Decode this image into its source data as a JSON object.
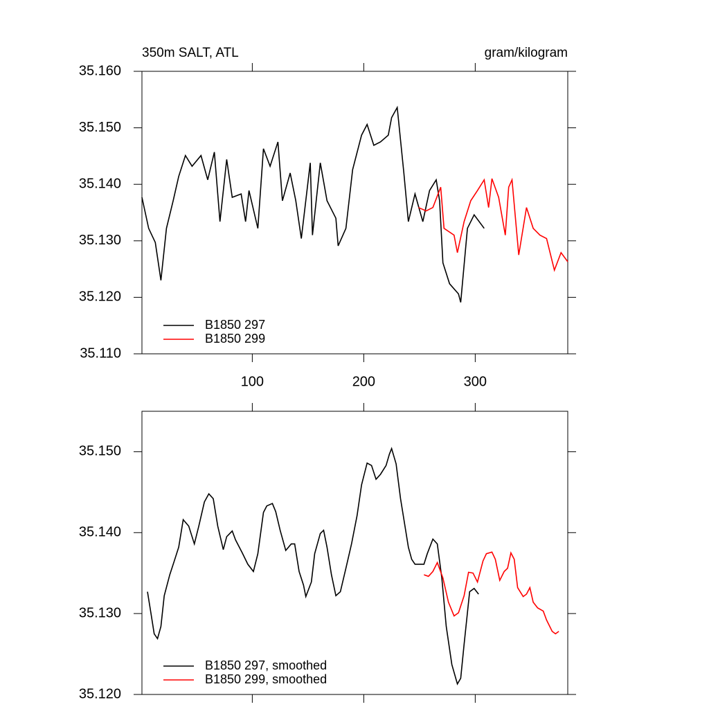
{
  "chart_data": [
    {
      "type": "line",
      "title": "350m SALT, ATL",
      "units": "gram/kilogram",
      "xlim": [
        1,
        383
      ],
      "xticks": [
        100,
        200,
        300
      ],
      "ylim": [
        35.11,
        35.16
      ],
      "yticks": [
        {
          "value": 35.11,
          "label": "35.110"
        },
        {
          "value": 35.12,
          "label": "35.120"
        },
        {
          "value": 35.13,
          "label": "35.130"
        },
        {
          "value": 35.14,
          "label": "35.140"
        },
        {
          "value": 35.15,
          "label": "35.150"
        },
        {
          "value": 35.16,
          "label": "35.160"
        }
      ],
      "legend": "bottom-left",
      "series": [
        {
          "name": "B1850 297",
          "color": "#000000",
          "x": [
            1,
            7,
            13,
            18,
            23,
            29,
            34,
            40,
            46,
            54,
            60,
            66,
            71,
            77,
            82,
            90,
            94,
            97,
            105,
            110,
            116,
            123,
            127,
            134,
            139,
            144,
            152,
            154,
            161,
            167,
            175,
            177,
            184,
            190,
            198,
            203,
            209,
            215,
            222,
            225,
            230,
            236,
            240,
            246,
            253,
            259,
            265,
            268,
            271,
            277,
            285,
            287,
            293,
            299,
            308
          ],
          "values": [
            35.1377,
            35.1322,
            35.1297,
            35.123,
            35.1322,
            35.1371,
            35.1414,
            35.1451,
            35.1432,
            35.1451,
            35.1408,
            35.1457,
            35.1334,
            35.1444,
            35.1377,
            35.1383,
            35.1334,
            35.1389,
            35.1322,
            35.1463,
            35.1432,
            35.1475,
            35.1371,
            35.142,
            35.1371,
            35.1304,
            35.1438,
            35.131,
            35.1438,
            35.1371,
            35.134,
            35.1291,
            35.1322,
            35.1426,
            35.1487,
            35.1506,
            35.1469,
            35.1475,
            35.1487,
            35.1518,
            35.1536,
            35.142,
            35.1334,
            35.1383,
            35.1334,
            35.1389,
            35.1408,
            35.1371,
            35.1261,
            35.1224,
            35.1206,
            35.1191,
            35.1322,
            35.1346,
            35.1322
          ]
        },
        {
          "name": "B1850 299",
          "color": "#ff0000",
          "x": [
            249,
            256,
            262,
            269,
            272,
            281,
            284,
            290,
            296,
            302,
            308,
            312,
            315,
            321,
            327,
            330,
            333,
            339,
            346,
            352,
            358,
            364,
            371,
            377,
            383
          ],
          "values": [
            35.1359,
            35.1353,
            35.1359,
            35.1395,
            35.1322,
            35.131,
            35.1279,
            35.1334,
            35.1371,
            35.1389,
            35.1408,
            35.1359,
            35.141,
            35.1377,
            35.131,
            35.1395,
            35.1408,
            35.1275,
            35.1359,
            35.1322,
            35.131,
            35.1304,
            35.1248,
            35.1279,
            35.1263
          ]
        }
      ]
    },
    {
      "type": "line",
      "xlim": [
        1,
        383
      ],
      "ylim": [
        35.12,
        35.155
      ],
      "yticks": [
        {
          "value": 35.12,
          "label": "35.120"
        },
        {
          "value": 35.13,
          "label": "35.130"
        },
        {
          "value": 35.14,
          "label": "35.140"
        },
        {
          "value": 35.15,
          "label": "35.150"
        }
      ],
      "legend": "bottom-left",
      "series": [
        {
          "name": "B1850 297, smoothed",
          "color": "#000000",
          "x": [
            6,
            9,
            12,
            15,
            18,
            21,
            26,
            30,
            34,
            38,
            43,
            48,
            52,
            57,
            61,
            65,
            69,
            74,
            77,
            82,
            85,
            91,
            96,
            101,
            105,
            110,
            113,
            118,
            121,
            125,
            130,
            135,
            138,
            142,
            146,
            148,
            153,
            156,
            161,
            164,
            167,
            171,
            175,
            179,
            184,
            189,
            194,
            198,
            203,
            207,
            211,
            215,
            220,
            223,
            225,
            229,
            233,
            237,
            240,
            243,
            246,
            249,
            254,
            257,
            262,
            266,
            270,
            274,
            279,
            284,
            287,
            290,
            295,
            299,
            303
          ],
          "values": [
            35.1327,
            35.1301,
            35.1275,
            35.1269,
            35.1284,
            35.1322,
            35.1348,
            35.1365,
            35.1382,
            35.1416,
            35.1408,
            35.1386,
            35.1408,
            35.1438,
            35.1448,
            35.1442,
            35.1408,
            35.1379,
            35.1395,
            35.1402,
            35.1391,
            35.1375,
            35.1361,
            35.1352,
            35.1374,
            35.1425,
            35.1433,
            35.1436,
            35.1426,
            35.1403,
            35.1378,
            35.1386,
            35.1386,
            35.1352,
            35.1335,
            35.1321,
            35.1339,
            35.1374,
            35.1399,
            35.1403,
            35.1382,
            35.1348,
            35.1322,
            35.1327,
            35.1356,
            35.1386,
            35.1421,
            35.1459,
            35.1486,
            35.1483,
            35.1466,
            35.1472,
            35.1483,
            35.1497,
            35.1504,
            35.1485,
            35.1442,
            35.1408,
            35.1382,
            35.1367,
            35.1361,
            35.1361,
            35.1361,
            35.1374,
            35.1392,
            35.1386,
            35.1344,
            35.1284,
            35.1237,
            35.1213,
            35.122,
            35.1262,
            35.1327,
            35.1331,
            35.1324
          ]
        },
        {
          "name": "B1850 299, smoothed",
          "color": "#ff0000",
          "x": [
            254,
            258,
            262,
            266,
            271,
            276,
            281,
            285,
            290,
            294,
            298,
            302,
            307,
            310,
            315,
            318,
            322,
            326,
            329,
            332,
            335,
            338,
            343,
            346,
            349,
            352,
            356,
            361,
            364,
            369,
            372,
            375
          ],
          "values": [
            35.1348,
            35.1346,
            35.1352,
            35.1363,
            35.1344,
            35.1314,
            35.1297,
            35.1301,
            35.1322,
            35.1351,
            35.135,
            35.1339,
            35.1365,
            35.1374,
            35.1376,
            35.1367,
            35.1341,
            35.1352,
            35.1356,
            35.1375,
            35.1367,
            35.1332,
            35.1321,
            35.1324,
            35.1332,
            35.1314,
            35.1307,
            35.1303,
            35.1292,
            35.1278,
            35.1275,
            35.1278
          ]
        }
      ]
    }
  ]
}
